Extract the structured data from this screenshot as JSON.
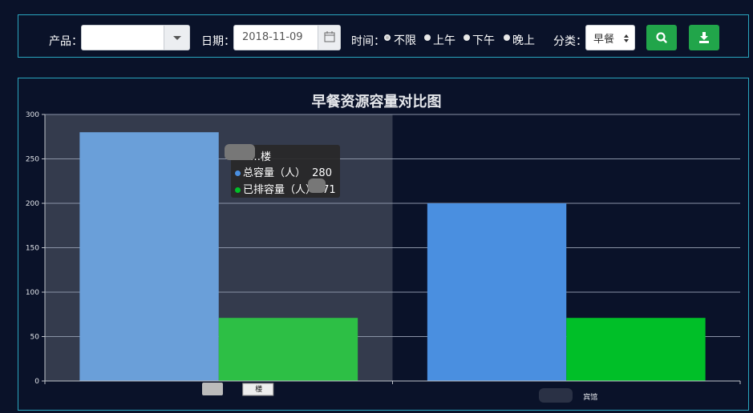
{
  "toolbar": {
    "product_label": "产品：",
    "product_value": "",
    "date_label": "日期：",
    "date_value": "2018-11-09",
    "time_label": "时间：",
    "time_options": [
      "不限",
      "上午",
      "下午",
      "晚上"
    ],
    "time_selected": "不限",
    "category_label": "分类：",
    "category_value": "早餐",
    "search_icon": "search-icon",
    "download_icon": "download-icon",
    "button_color": "#21a54a"
  },
  "chart_data": {
    "type": "bar",
    "title": "早餐资源容量对比图",
    "categories": [
      "…楼",
      "…宾馆"
    ],
    "series": [
      {
        "name": "总容量（人）",
        "values": [
          280,
          200
        ],
        "color": "#4a8fe0"
      },
      {
        "name": "已排容量（人）",
        "values": [
          71,
          71
        ],
        "color": "#00bf28"
      }
    ],
    "ylim": [
      0,
      300
    ],
    "yticks": [
      0,
      50,
      100,
      150,
      200,
      250,
      300
    ],
    "grid": true,
    "legend": "none",
    "highlighted_category": 0
  },
  "tooltip": {
    "title": "…楼",
    "rows": [
      {
        "label": "总容量（人）",
        "value": "280"
      },
      {
        "label": "已排容量（人）",
        "value": "71"
      }
    ]
  }
}
